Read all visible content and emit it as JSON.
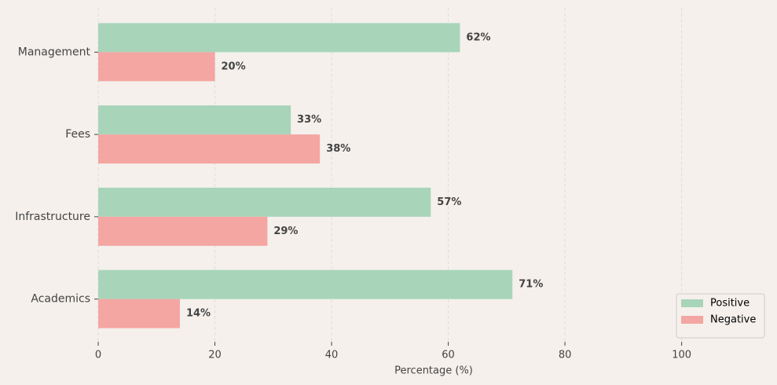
{
  "chart_data": {
    "type": "hbar",
    "categories": [
      "Management",
      "Fees",
      "Infrastructure",
      "Academics"
    ],
    "series": [
      {
        "name": "Positive",
        "color": "#a8d5ba",
        "values": [
          62,
          33,
          57,
          71
        ],
        "value_labels": [
          "62%",
          "33%",
          "57%",
          "71%"
        ]
      },
      {
        "name": "Negative",
        "color": "#f4a6a2",
        "values": [
          20,
          38,
          29,
          14
        ],
        "value_labels": [
          "20%",
          "38%",
          "29%",
          "14%"
        ]
      }
    ],
    "xlabel": "Percentage (%)",
    "xlim": [
      0,
      115
    ],
    "xticks": [
      0,
      20,
      40,
      60,
      80,
      100
    ],
    "grid": true,
    "legend": "lower right"
  }
}
